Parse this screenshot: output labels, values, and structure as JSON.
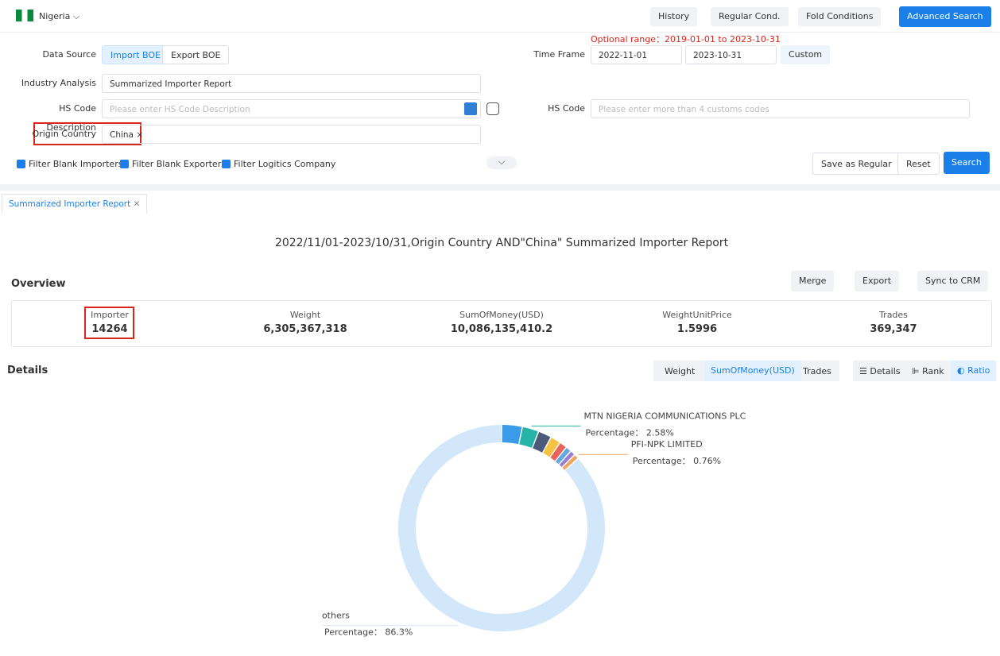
{
  "header": {
    "country": "Nigeria",
    "buttons": [
      "History",
      "Regular Cond.",
      "Fold Conditions",
      "Advanced Search"
    ]
  },
  "form": {
    "optional_range": "Optional range：2019-01-01 to 2023-10-31",
    "data_source": {
      "label": "Data Source",
      "options": [
        "Import BOE",
        "Export BOE"
      ]
    },
    "time_frame": {
      "label": "Time Frame",
      "start": "2022-11-01",
      "end": "2023-10-31",
      "custom": "Custom"
    },
    "industry_analysis": {
      "label": "Industry Analysis",
      "value": "Summarized Importer Report"
    },
    "hs_code_description": {
      "label": "HS Code Description",
      "placeholder": "Please enter HS Code Description"
    },
    "hs_code": {
      "label": "HS Code",
      "placeholder": "Please enter more than 4 customs codes"
    },
    "origin_country": {
      "label": "Origin Country",
      "value": "China"
    },
    "filters": [
      "Filter Blank Importers",
      "Filter Blank Exporters",
      "Filter Logitics Company"
    ],
    "actions": [
      "Save as Regular",
      "Reset",
      "Search"
    ]
  },
  "tab": "Summarized Importer Report",
  "report": {
    "title": "2022/11/01-2023/10/31,Origin Country AND\"China\" Summarized Importer Report",
    "overview": {
      "title": "Overview",
      "actions": [
        "Merge",
        "Export",
        "Sync to CRM"
      ],
      "stats": [
        {
          "label": "Importer",
          "value": "14264"
        },
        {
          "label": "Weight",
          "value": "6,305,367,318"
        },
        {
          "label": "SumOfMoney(USD)",
          "value": "10,086,135,410.2"
        },
        {
          "label": "WeightUnitPrice",
          "value": "1.5996"
        },
        {
          "label": "Trades",
          "value": "369,347"
        }
      ]
    },
    "details": {
      "title": "Details",
      "metrics": [
        "Weight",
        "SumOfMoney(USD)",
        "Trades"
      ],
      "views": [
        "Details",
        "Rank",
        "Ratio"
      ]
    }
  },
  "chart_data": {
    "type": "donut",
    "categories": [
      null,
      "MTN NIGERIA COMMUNICATIONS PLC",
      null,
      null,
      null,
      null,
      null,
      "PFI-NPK LIMITED",
      "others"
    ],
    "values": [
      3.2,
      2.58,
      2.1,
      1.6,
      1.2,
      0.9,
      0.8,
      0.76,
      86.3
    ],
    "value_labels": [
      null,
      "Percentage： 2.58%",
      null,
      null,
      null,
      null,
      null,
      "Percentage： 0.76%",
      "Percentage： 86.3%"
    ],
    "colors": [
      "#3a9be8",
      "#26b3a8",
      "#4b5a78",
      "#f5c242",
      "#e8625e",
      "#5fa8e0",
      "#9a7fd1",
      "#f0a45c",
      "#d3e7fb"
    ]
  }
}
